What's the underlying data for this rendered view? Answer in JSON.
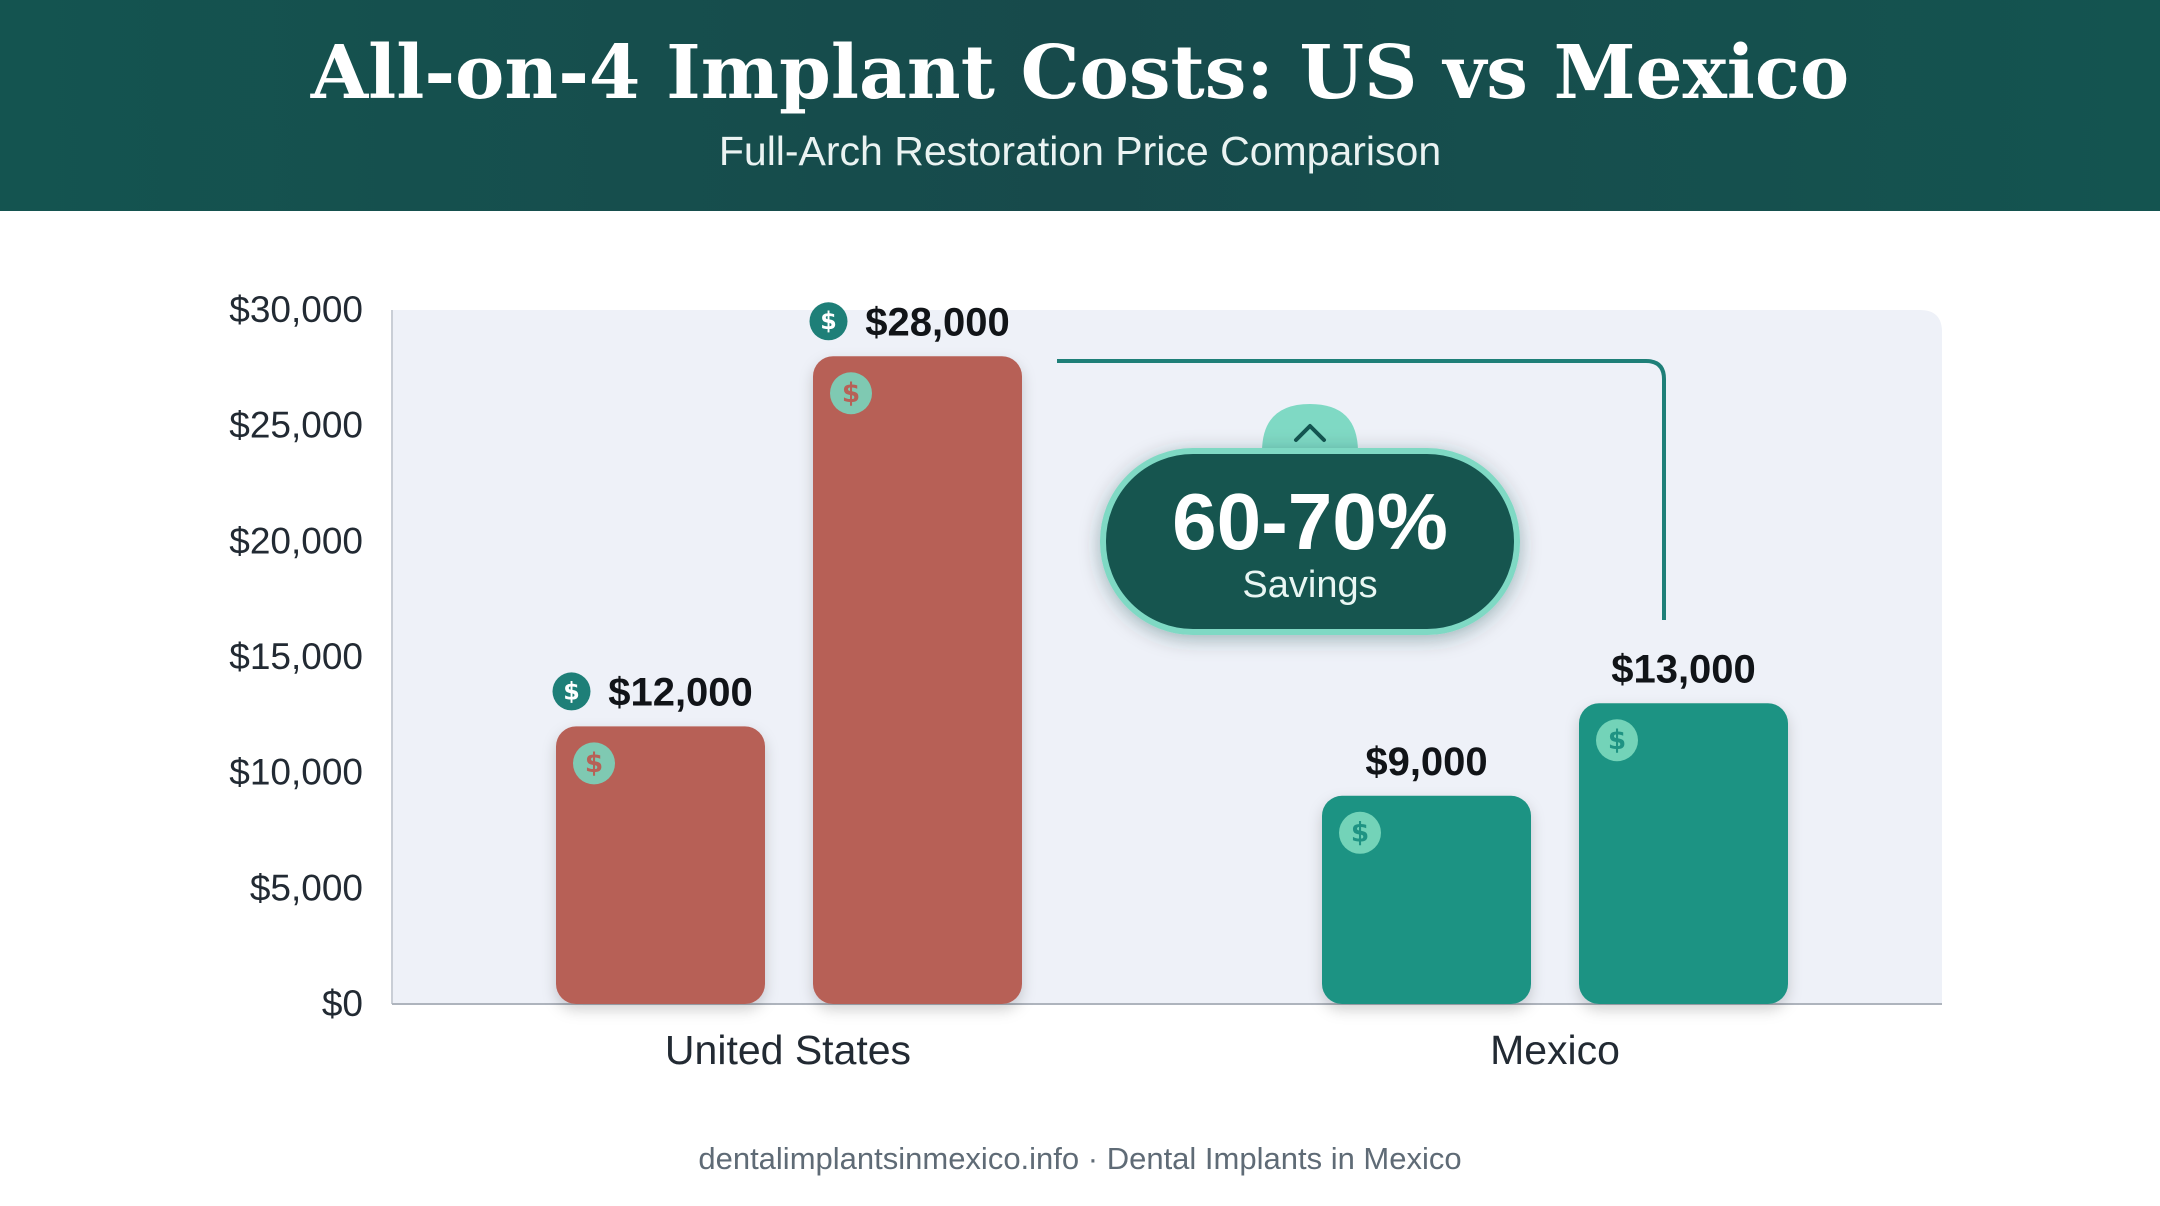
{
  "header": {
    "title": "All-on-4 Implant Costs: US vs Mexico",
    "subtitle": "Full-Arch Restoration Price Comparison"
  },
  "chart_data": {
    "type": "bar",
    "categories": [
      "United States",
      "Mexico"
    ],
    "bars": [
      {
        "category": "United States",
        "value": 12000,
        "label": "$12,000",
        "color": "#b76157",
        "label_badge": true
      },
      {
        "category": "United States",
        "value": 28000,
        "label": "$28,000",
        "color": "#b76157",
        "label_badge": true
      },
      {
        "category": "Mexico",
        "value": 9000,
        "label": "$9,000",
        "color": "#1f9383",
        "label_badge": false
      },
      {
        "category": "Mexico",
        "value": 13000,
        "label": "$13,000",
        "color": "#1f9383",
        "label_badge": false
      }
    ],
    "ylim": [
      0,
      30000
    ],
    "yticks": [
      {
        "value": 0,
        "label": "$0"
      },
      {
        "value": 5000,
        "label": "$5,000"
      },
      {
        "value": 10000,
        "label": "$10,000"
      },
      {
        "value": 15000,
        "label": "$15,000"
      },
      {
        "value": 20000,
        "label": "$20,000"
      },
      {
        "value": 25000,
        "label": "$25,000"
      },
      {
        "value": 30000,
        "label": "$30,000"
      }
    ],
    "xlabel": "",
    "ylabel": "",
    "grid": false,
    "annotation": {
      "value": "60-70%",
      "text": "Savings"
    },
    "icon": "dollar-coin-icon",
    "colors": {
      "us": "#b76157",
      "mexico": "#1f9383",
      "accent": "#7fd9c4",
      "badge": "#1e7f78",
      "dark": "#145450",
      "plot_bg": "#eef1f8"
    }
  },
  "footer": {
    "text": "dentalimplantsinmexico.info · Dental Implants in Mexico"
  }
}
